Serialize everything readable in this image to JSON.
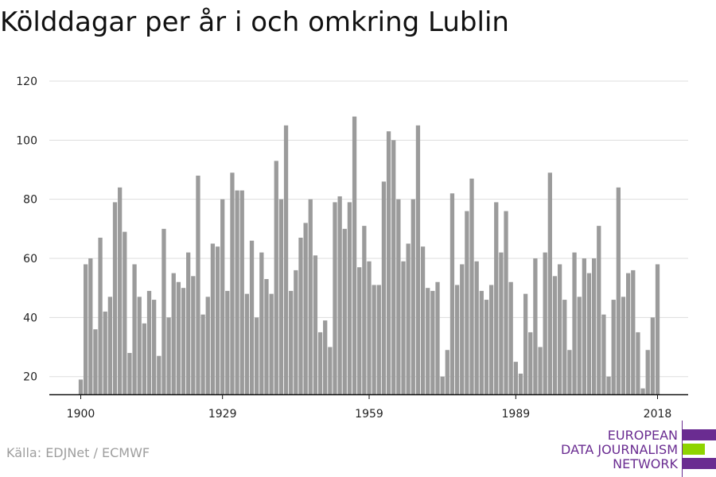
{
  "title": "Kölddagar per år i och omkring Lublin",
  "source": "Källa: EDJNet / ECMWF",
  "logo": {
    "line1": "EUROPEAN",
    "line2": "DATA JOURNALISM",
    "line3": "NETWORK"
  },
  "colors": {
    "bar": "#9b9b9b",
    "grid": "#dddddd",
    "axis": "#111111",
    "logo_purple": "#6a2c91",
    "logo_green": "#8fd400"
  },
  "chart_data": {
    "type": "bar",
    "title": "Kölddagar per år i och omkring Lublin",
    "xlabel": "",
    "ylabel": "",
    "x_start": 1900,
    "x_end": 2018,
    "xticks": [
      1900,
      1929,
      1959,
      1989,
      2018
    ],
    "yticks": [
      20,
      40,
      60,
      80,
      100,
      120
    ],
    "ylim": [
      14,
      120
    ],
    "grid": true,
    "values": [
      19,
      58,
      60,
      36,
      67,
      42,
      47,
      79,
      84,
      69,
      28,
      58,
      47,
      38,
      49,
      46,
      27,
      70,
      40,
      55,
      52,
      50,
      62,
      54,
      88,
      41,
      47,
      65,
      64,
      80,
      49,
      89,
      83,
      83,
      48,
      66,
      40,
      62,
      53,
      48,
      93,
      80,
      105,
      49,
      56,
      67,
      72,
      80,
      61,
      35,
      39,
      30,
      79,
      81,
      70,
      79,
      108,
      57,
      71,
      59,
      51,
      51,
      86,
      103,
      100,
      80,
      59,
      65,
      80,
      105,
      64,
      50,
      49,
      52,
      20,
      29,
      82,
      51,
      58,
      76,
      87,
      59,
      49,
      46,
      51,
      79,
      62,
      76,
      52,
      25,
      21,
      48,
      35,
      60,
      30,
      62,
      89,
      54,
      58,
      46,
      29,
      62,
      47,
      60,
      55,
      60,
      71,
      41,
      20,
      46,
      84,
      47,
      55,
      56,
      35,
      16,
      29,
      40,
      58
    ]
  }
}
